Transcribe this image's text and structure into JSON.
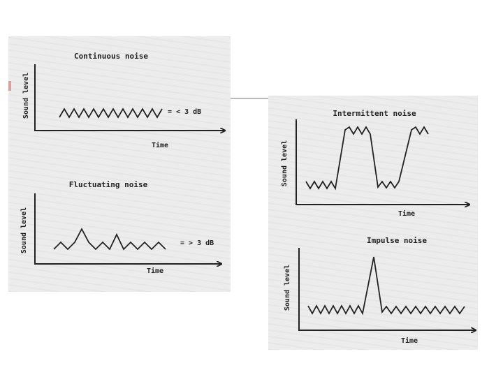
{
  "panels": {
    "continuous": {
      "title": "Continuous noise",
      "ylabel": "Sound level",
      "xlabel": "Time",
      "annotation": "= < 3 dB"
    },
    "fluctuating": {
      "title": "Fluctuating noise",
      "ylabel": "Sound level",
      "xlabel": "Time",
      "annotation": "= > 3 dB"
    },
    "intermittent": {
      "title": "Intermittent noise",
      "ylabel": "Sound level",
      "xlabel": "Time"
    },
    "impulse": {
      "title": "Impulse noise",
      "ylabel": "Sound level",
      "xlabel": "Time"
    }
  },
  "colors": {
    "panel_bg": "#ececec",
    "ink": "#222222",
    "connector": "#b9b9b9"
  }
}
